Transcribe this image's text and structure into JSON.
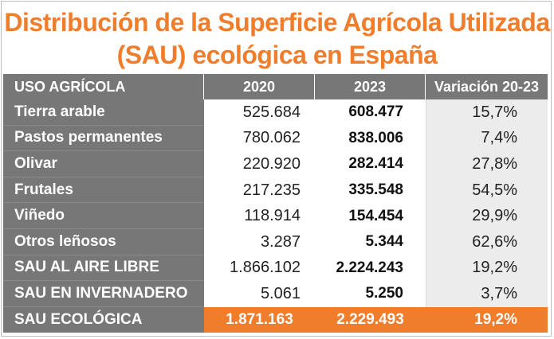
{
  "title": {
    "line1": "Distribución de la Superficie Agrícola Utilizada",
    "line2": "(SAU) ecológica en España"
  },
  "table": {
    "headers": [
      "USO AGRÍCOLA",
      "2020",
      "2023",
      "Variación 20-23"
    ],
    "rows": [
      {
        "label": "Tierra arable",
        "v2020": "525.684",
        "v2023": "608.477",
        "var": "15,7%"
      },
      {
        "label": "Pastos permanentes",
        "v2020": "780.062",
        "v2023": "838.006",
        "var": "7,4%"
      },
      {
        "label": "Olivar",
        "v2020": "220.920",
        "v2023": "282.414",
        "var": "27,8%"
      },
      {
        "label": "Frutales",
        "v2020": "217.235",
        "v2023": "335.548",
        "var": "54,5%"
      },
      {
        "label": "Viñedo",
        "v2020": "118.914",
        "v2023": "154.454",
        "var": "29,9%"
      },
      {
        "label": "Otros leñosos",
        "v2020": "3.287",
        "v2023": "5.344",
        "var": "62,6%"
      },
      {
        "label": "SAU AL AIRE LIBRE",
        "v2020": "1.866.102",
        "v2023": "2.224.243",
        "var": "19,2%"
      },
      {
        "label": "SAU EN INVERNADERO",
        "v2020": "5.061",
        "v2023": "5.250",
        "var": "3,7%"
      }
    ],
    "total": {
      "label": "SAU ECOLÓGICA",
      "v2020": "1.871.163",
      "v2023": "2.229.493",
      "var": "19,2%"
    }
  },
  "colors": {
    "accent": "#ef7d2b",
    "header_gray": "#777777",
    "variation_bg": "#ececec"
  }
}
